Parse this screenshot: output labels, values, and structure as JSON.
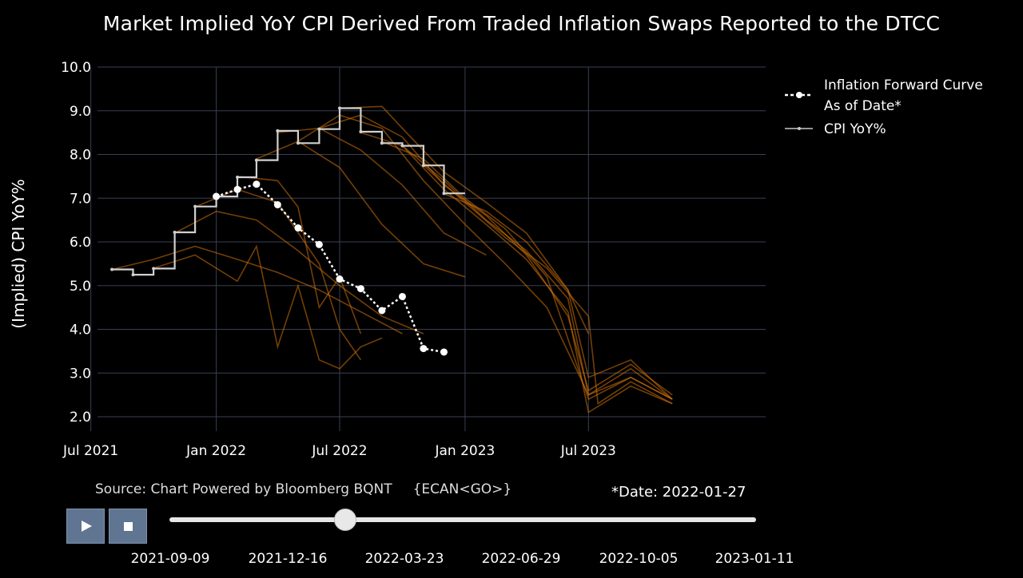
{
  "title": "Market Implied YoY CPI Derived From Traded Inflation Swaps Reported to the DTCC",
  "source_text": "Source: Chart Powered by Bloomberg BQNT",
  "ecan_text": "{ECAN<GO>}",
  "date_label": "*Date: 2022-01-27",
  "colors": {
    "background": "#000000",
    "forward_fan": "#d4720a",
    "cpi_line": "#c8c8c8",
    "forward_curve": "#ffffff",
    "button": "#5f7592"
  },
  "controls": {
    "play_icon": "play-icon",
    "stop_icon": "stop-icon",
    "slider_value": 0.3
  },
  "slider_steps": [
    "2021-09-09",
    "2021-12-16",
    "2022-03-23",
    "2022-06-29",
    "2022-10-05",
    "2023-01-11"
  ],
  "chart_data": {
    "type": "line",
    "ylabel": "(Implied) CPI YoY%",
    "xlabel": "",
    "ylim": [
      2.0,
      10.0
    ],
    "y_ticks": [
      "2.0",
      "3.0",
      "4.0",
      "5.0",
      "6.0",
      "7.0",
      "8.0",
      "9.0",
      "10.0"
    ],
    "x_ticks": [
      "Jul 2021",
      "Jan 2022",
      "Jul 2022",
      "Jan 2023",
      "Jul 2023"
    ],
    "x_range": [
      "2021-06-15",
      "2024-03-31"
    ],
    "grid": true,
    "legend_position": "top-right",
    "legend": [
      "Inflation Forward Curve\nAs of Date*",
      "CPI YoY%"
    ],
    "series": [
      {
        "name": "CPI YoY%",
        "step": true,
        "points": [
          [
            "2021-08-01",
            5.37
          ],
          [
            "2021-09-01",
            5.25
          ],
          [
            "2021-10-01",
            5.39
          ],
          [
            "2021-11-01",
            6.22
          ],
          [
            "2021-12-01",
            6.81
          ],
          [
            "2022-01-01",
            7.04
          ],
          [
            "2022-02-01",
            7.48
          ],
          [
            "2022-03-01",
            7.87
          ],
          [
            "2022-04-01",
            8.54
          ],
          [
            "2022-05-01",
            8.26
          ],
          [
            "2022-06-01",
            8.58
          ],
          [
            "2022-07-01",
            9.06
          ],
          [
            "2022-08-01",
            8.52
          ],
          [
            "2022-09-01",
            8.26
          ],
          [
            "2022-10-01",
            8.2
          ],
          [
            "2022-11-01",
            7.75
          ],
          [
            "2022-12-01",
            7.11
          ]
        ]
      },
      {
        "name": "Inflation Forward Curve As of Date*",
        "points": [
          [
            "2022-01-01",
            7.04
          ],
          [
            "2022-02-01",
            7.2
          ],
          [
            "2022-03-01",
            7.32
          ],
          [
            "2022-04-01",
            6.85
          ],
          [
            "2022-05-01",
            6.32
          ],
          [
            "2022-06-01",
            5.94
          ],
          [
            "2022-07-01",
            5.15
          ],
          [
            "2022-08-01",
            4.93
          ],
          [
            "2022-09-01",
            4.43
          ],
          [
            "2022-10-01",
            4.75
          ],
          [
            "2022-11-01",
            3.56
          ],
          [
            "2022-12-01",
            3.48
          ]
        ]
      }
    ],
    "forward_fan": [
      [
        [
          "2021-08-01",
          5.37
        ],
        [
          "2021-10-01",
          5.6
        ],
        [
          "2021-12-01",
          5.9
        ],
        [
          "2022-02-01",
          5.6
        ],
        [
          "2022-04-01",
          5.3
        ],
        [
          "2022-06-01",
          4.9
        ],
        [
          "2022-08-01",
          4.4
        ],
        [
          "2022-10-01",
          3.9
        ]
      ],
      [
        [
          "2021-11-01",
          6.2
        ],
        [
          "2022-01-01",
          6.7
        ],
        [
          "2022-03-01",
          6.5
        ],
        [
          "2022-05-01",
          5.8
        ],
        [
          "2022-07-01",
          5.0
        ],
        [
          "2022-09-01",
          4.3
        ],
        [
          "2022-11-01",
          3.9
        ]
      ],
      [
        [
          "2021-12-01",
          6.8
        ],
        [
          "2022-02-01",
          7.2
        ],
        [
          "2022-04-01",
          6.9
        ],
        [
          "2022-06-01",
          5.5
        ],
        [
          "2022-07-01",
          4.0
        ],
        [
          "2022-08-01",
          3.3
        ]
      ],
      [
        [
          "2021-10-01",
          5.4
        ],
        [
          "2021-12-01",
          5.7
        ],
        [
          "2022-02-01",
          5.1
        ],
        [
          "2022-03-01",
          5.9
        ],
        [
          "2022-04-01",
          3.6
        ],
        [
          "2022-05-01",
          5.0
        ],
        [
          "2022-06-01",
          3.3
        ],
        [
          "2022-07-01",
          3.1
        ],
        [
          "2022-08-01",
          3.6
        ],
        [
          "2022-09-01",
          3.8
        ]
      ],
      [
        [
          "2022-02-01",
          7.5
        ],
        [
          "2022-04-01",
          7.4
        ],
        [
          "2022-05-01",
          6.8
        ],
        [
          "2022-06-01",
          4.5
        ],
        [
          "2022-07-01",
          5.2
        ],
        [
          "2022-08-01",
          3.9
        ]
      ],
      [
        [
          "2022-03-01",
          7.9
        ],
        [
          "2022-05-01",
          8.3
        ],
        [
          "2022-07-01",
          7.7
        ],
        [
          "2022-09-01",
          6.4
        ],
        [
          "2022-11-01",
          5.5
        ],
        [
          "2023-01-01",
          5.2
        ]
      ],
      [
        [
          "2022-04-01",
          8.5
        ],
        [
          "2022-06-01",
          8.6
        ],
        [
          "2022-08-01",
          8.1
        ],
        [
          "2022-10-01",
          7.3
        ],
        [
          "2022-12-01",
          6.2
        ],
        [
          "2023-02-01",
          5.7
        ]
      ],
      [
        [
          "2022-05-01",
          8.3
        ],
        [
          "2022-07-01",
          8.9
        ],
        [
          "2022-09-01",
          8.6
        ],
        [
          "2022-11-01",
          7.4
        ],
        [
          "2023-01-01",
          6.4
        ],
        [
          "2023-03-01",
          5.5
        ],
        [
          "2023-05-01",
          4.5
        ],
        [
          "2023-07-01",
          2.5
        ],
        [
          "2023-09-01",
          2.9
        ],
        [
          "2023-11-01",
          2.4
        ]
      ],
      [
        [
          "2022-06-01",
          8.6
        ],
        [
          "2022-08-01",
          8.9
        ],
        [
          "2022-10-01",
          8.4
        ],
        [
          "2022-12-01",
          7.3
        ],
        [
          "2023-02-01",
          6.6
        ],
        [
          "2023-04-01",
          5.7
        ],
        [
          "2023-06-01",
          4.3
        ],
        [
          "2023-07-01",
          2.6
        ],
        [
          "2023-09-01",
          3.2
        ],
        [
          "2023-11-01",
          2.5
        ]
      ],
      [
        [
          "2022-07-01",
          9.06
        ],
        [
          "2022-09-01",
          9.1
        ],
        [
          "2022-10-01",
          8.6
        ],
        [
          "2022-12-01",
          7.6
        ],
        [
          "2023-02-01",
          6.9
        ],
        [
          "2023-04-01",
          6.2
        ],
        [
          "2023-06-01",
          4.9
        ],
        [
          "2023-07-01",
          2.9
        ],
        [
          "2023-09-01",
          3.3
        ],
        [
          "2023-11-01",
          2.4
        ]
      ],
      [
        [
          "2022-08-01",
          8.5
        ],
        [
          "2022-10-01",
          8.2
        ],
        [
          "2022-12-01",
          7.2
        ],
        [
          "2023-02-01",
          6.4
        ],
        [
          "2023-04-01",
          5.6
        ],
        [
          "2023-06-01",
          4.4
        ],
        [
          "2023-07-01",
          2.1
        ],
        [
          "2023-09-01",
          2.7
        ],
        [
          "2023-11-01",
          2.3
        ]
      ],
      [
        [
          "2022-09-01",
          8.3
        ],
        [
          "2022-11-01",
          7.9
        ],
        [
          "2023-01-01",
          7.0
        ],
        [
          "2023-03-01",
          6.3
        ],
        [
          "2023-05-01",
          5.2
        ],
        [
          "2023-07-01",
          2.4
        ],
        [
          "2023-09-01",
          2.9
        ],
        [
          "2023-11-01",
          2.4
        ]
      ],
      [
        [
          "2022-10-01",
          8.2
        ],
        [
          "2022-12-01",
          7.4
        ],
        [
          "2023-02-01",
          6.5
        ],
        [
          "2023-04-01",
          5.8
        ],
        [
          "2023-06-01",
          4.7
        ],
        [
          "2023-07-01",
          2.5
        ],
        [
          "2023-09-01",
          3.1
        ],
        [
          "2023-11-01",
          2.4
        ]
      ],
      [
        [
          "2022-11-01",
          7.75
        ],
        [
          "2023-01-01",
          6.9
        ],
        [
          "2023-03-01",
          6.1
        ],
        [
          "2023-05-01",
          5.4
        ],
        [
          "2023-07-01",
          4.3
        ],
        [
          "2023-07-15",
          2.3
        ],
        [
          "2023-09-01",
          2.8
        ],
        [
          "2023-11-01",
          2.3
        ]
      ],
      [
        [
          "2022-12-01",
          7.1
        ],
        [
          "2023-02-01",
          6.7
        ],
        [
          "2023-04-01",
          6.0
        ],
        [
          "2023-06-01",
          4.9
        ],
        [
          "2023-07-01",
          3.9
        ]
      ]
    ]
  }
}
